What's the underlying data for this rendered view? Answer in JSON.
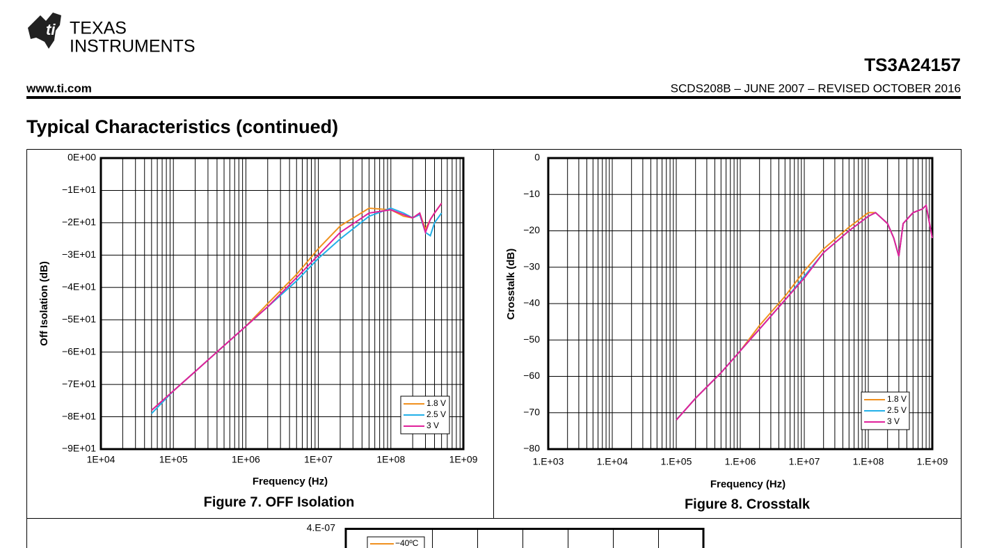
{
  "header": {
    "logo_line1": "TEXAS",
    "logo_line2": "INSTRUMENTS",
    "part_number": "TS3A24157",
    "website": "www.ti.com",
    "document_id": "SCDS208B – JUNE 2007 – REVISED OCTOBER 2016"
  },
  "section_title": "Typical Characteristics (continued)",
  "chart_data": [
    {
      "type": "line",
      "caption": "Figure 7. OFF Isolation",
      "x_label": "Frequency (Hz)",
      "y_label": "Off Isolation (dB)",
      "xscale": "log",
      "xlim": [
        10000,
        1000000000
      ],
      "xticks": [
        {
          "value": 10000,
          "label": "1E+04"
        },
        {
          "value": 100000,
          "label": "1E+05"
        },
        {
          "value": 1000000,
          "label": "1E+06"
        },
        {
          "value": 10000000,
          "label": "1E+07"
        },
        {
          "value": 100000000,
          "label": "1E+08"
        },
        {
          "value": 1000000000,
          "label": "1E+09"
        }
      ],
      "ylim": [
        -90,
        0
      ],
      "yticks": [
        {
          "value": 0,
          "label": "0E+00"
        },
        {
          "value": -10,
          "label": "−1E+01"
        },
        {
          "value": -20,
          "label": "−2E+01"
        },
        {
          "value": -30,
          "label": "−3E+01"
        },
        {
          "value": -40,
          "label": "−4E+01"
        },
        {
          "value": -50,
          "label": "−5E+01"
        },
        {
          "value": -60,
          "label": "−6E+01"
        },
        {
          "value": -70,
          "label": "−7E+01"
        },
        {
          "value": -80,
          "label": "−8E+01"
        },
        {
          "value": -90,
          "label": "−9E+01"
        }
      ],
      "grid": true,
      "legend": "lower right",
      "x": [
        50000,
        100000,
        200000,
        500000,
        1000000,
        2000000,
        5000000,
        10000000,
        20000000,
        50000000,
        100000000,
        150000000,
        200000000,
        250000000,
        300000000,
        350000000,
        400000000,
        500000000
      ],
      "series": [
        {
          "name": "1.8 V",
          "color": "#f0901e",
          "values": [
            -78,
            -72,
            -66,
            -58,
            -52,
            -45,
            -36,
            -28,
            -21,
            -15.5,
            -16,
            -18,
            -18.5,
            -17,
            -22,
            -19,
            -17,
            -14
          ]
        },
        {
          "name": "2.5 V",
          "color": "#22b0e8",
          "values": [
            -79,
            -72,
            -66,
            -58,
            -52,
            -46,
            -38,
            -31,
            -25,
            -18,
            -15.5,
            -17,
            -18.5,
            -17.5,
            -23,
            -24,
            -20,
            -17
          ]
        },
        {
          "name": "3 V",
          "color": "#e0209a",
          "values": [
            -78,
            -72,
            -66,
            -58,
            -52,
            -46,
            -37,
            -30,
            -23,
            -17,
            -16,
            -17.5,
            -18.5,
            -17,
            -23,
            -19,
            -17,
            -14
          ]
        }
      ]
    },
    {
      "type": "line",
      "caption": "Figure 8. Crosstalk",
      "x_label": "Frequency (Hz)",
      "y_label": "Crosstalk (dB)",
      "xscale": "log",
      "xlim": [
        1000,
        1000000000
      ],
      "xticks": [
        {
          "value": 1000,
          "label": "1.E+03"
        },
        {
          "value": 10000,
          "label": "1.E+04"
        },
        {
          "value": 100000,
          "label": "1.E+05"
        },
        {
          "value": 1000000,
          "label": "1.E+06"
        },
        {
          "value": 10000000,
          "label": "1.E+07"
        },
        {
          "value": 100000000,
          "label": "1.E+08"
        },
        {
          "value": 1000000000,
          "label": "1.E+09"
        }
      ],
      "ylim": [
        -80,
        0
      ],
      "yticks": [
        0,
        {
          "value": -10,
          "label": "−10"
        },
        {
          "value": -20,
          "label": "−20"
        },
        {
          "value": -30,
          "label": "−30"
        },
        {
          "value": -40,
          "label": "−40"
        },
        {
          "value": -50,
          "label": "−50"
        },
        {
          "value": -60,
          "label": "−60"
        },
        {
          "value": -70,
          "label": "−70"
        },
        {
          "value": -80,
          "label": "−80"
        }
      ],
      "grid": true,
      "legend": "lower right",
      "x": [
        100000,
        200000,
        500000,
        1000000,
        2000000,
        5000000,
        10000000,
        20000000,
        50000000,
        100000000,
        130000000,
        200000000,
        250000000,
        300000000,
        350000000,
        500000000,
        700000000,
        800000000,
        1000000000
      ],
      "series": [
        {
          "name": "1.8 V",
          "color": "#f0901e",
          "values": [
            -72,
            -66,
            -59,
            -53,
            -46,
            -38,
            -31,
            -25,
            -19,
            -15,
            -15,
            -18,
            -22,
            -27,
            -18,
            -15,
            -14,
            -13,
            -22
          ]
        },
        {
          "name": "2.5 V",
          "color": "#22b0e8",
          "values": [
            -72,
            -66,
            -59,
            -53,
            -47,
            -39,
            -32.5,
            -26,
            -20,
            -16,
            -15,
            -18,
            -22,
            -27,
            -18,
            -15,
            -14,
            -13,
            -22
          ]
        },
        {
          "name": "3 V",
          "color": "#e0209a",
          "values": [
            -72,
            -66,
            -59,
            -53,
            -47,
            -39,
            -33,
            -26,
            -20,
            -16,
            -15,
            -18,
            -22,
            -27,
            -18,
            -15,
            -14,
            -13,
            -22
          ]
        }
      ]
    }
  ],
  "partial_figure": {
    "ytick_label": "4.E-07",
    "legend_entry": "−40ºC",
    "legend_color": "#f0901e"
  }
}
